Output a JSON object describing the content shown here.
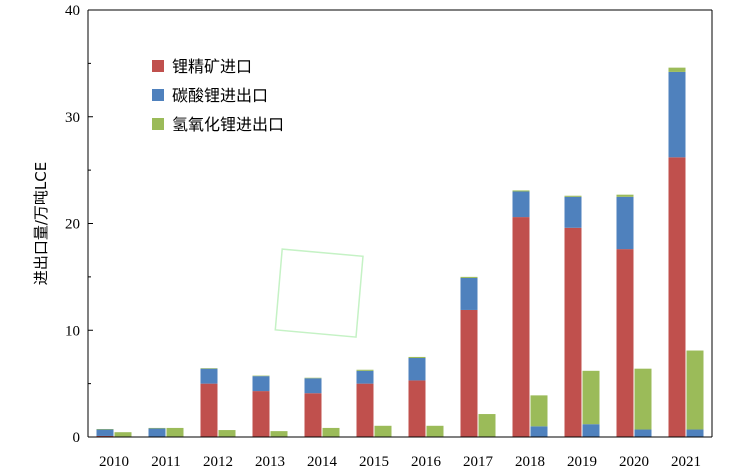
{
  "chart_data": {
    "type": "bar",
    "categories": [
      "2010",
      "2011",
      "2012",
      "2013",
      "2014",
      "2015",
      "2016",
      "2017",
      "2018",
      "2019",
      "2020",
      "2021"
    ],
    "ylabel": "进出口量/万吨LCE",
    "ylim": [
      0,
      40
    ],
    "yticks": [
      "0",
      "10",
      "20",
      "30",
      "40"
    ],
    "legend_position": "top-left",
    "grid": false,
    "series": [
      {
        "name": "锂精矿进口",
        "color": "#c0504d",
        "stack": "A",
        "values": [
          0.1,
          0.0,
          5.0,
          4.3,
          4.1,
          5.0,
          5.3,
          11.9,
          20.6,
          19.6,
          17.6,
          26.2
        ]
      },
      {
        "name": "碳酸锂进出口",
        "color": "#4f81bd",
        "stack": "A",
        "values": [
          0.6,
          0.8,
          1.4,
          1.4,
          1.4,
          1.2,
          2.1,
          3.0,
          2.4,
          2.9,
          4.9,
          8.0
        ]
      },
      {
        "name": "氢氧化锂进出口",
        "color": "#9bbb59",
        "stack": "A",
        "values": [
          0.05,
          0.05,
          0.05,
          0.05,
          0.05,
          0.1,
          0.1,
          0.1,
          0.1,
          0.1,
          0.2,
          0.4
        ]
      },
      {
        "name": "碳酸锂进出口",
        "color": "#4f81bd",
        "stack": "B",
        "legend": false,
        "values": [
          0.05,
          0.05,
          0.05,
          0.05,
          0.05,
          0.05,
          0.05,
          0.05,
          1.0,
          1.2,
          0.7,
          0.7
        ]
      },
      {
        "name": "氢氧化锂进出口",
        "color": "#9bbb59",
        "stack": "B",
        "legend": false,
        "values": [
          0.4,
          0.8,
          0.6,
          0.5,
          0.8,
          1.0,
          1.0,
          2.1,
          2.9,
          5.0,
          5.7,
          7.4
        ]
      }
    ]
  }
}
